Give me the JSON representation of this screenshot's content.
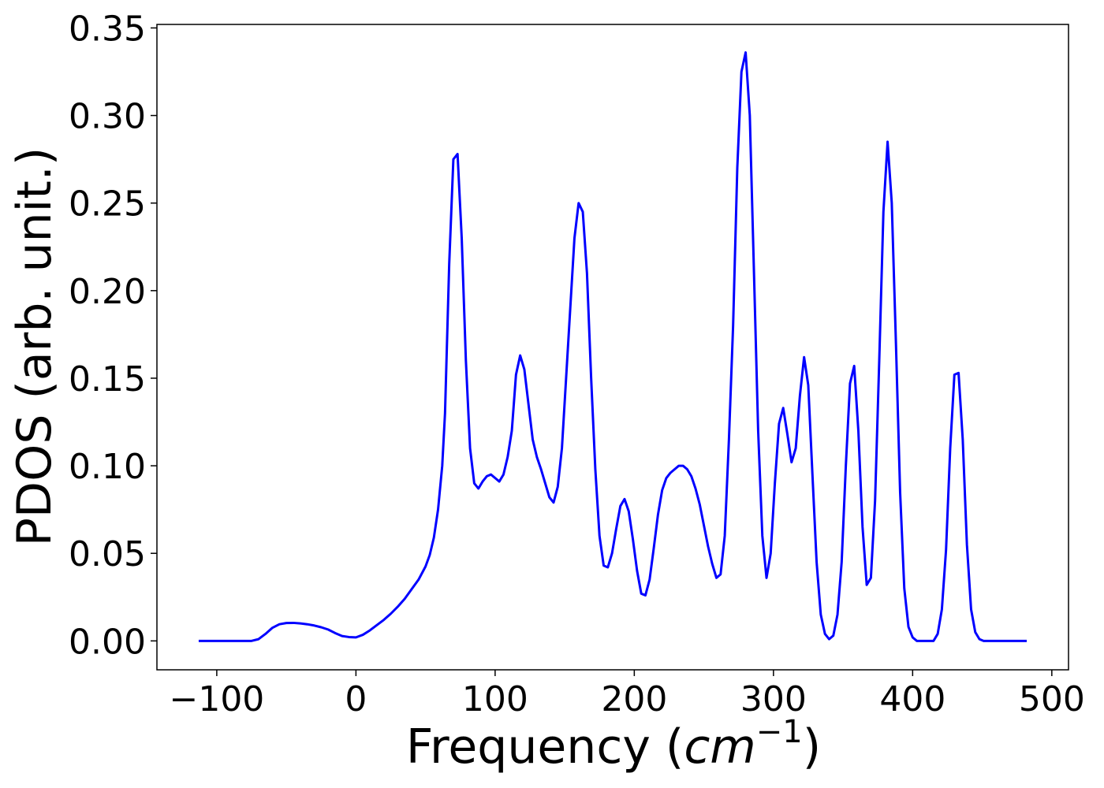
{
  "chart_data": {
    "type": "line",
    "title": "",
    "xlabel_main": "Frequency (",
    "xlabel_math": "cm",
    "xlabel_exp": "−1",
    "xlabel_close": ")",
    "ylabel": "PDOS (arb. unit.)",
    "xlim": [
      -143,
      512
    ],
    "ylim": [
      -0.0165,
      0.352
    ],
    "xticks": [
      -100,
      0,
      100,
      200,
      300,
      400,
      500
    ],
    "xtick_labels": [
      "−100",
      "0",
      "100",
      "200",
      "300",
      "400",
      "500"
    ],
    "yticks": [
      0.0,
      0.05,
      0.1,
      0.15,
      0.2,
      0.25,
      0.3,
      0.35
    ],
    "ytick_labels": [
      "0.00",
      "0.05",
      "0.10",
      "0.15",
      "0.20",
      "0.25",
      "0.30",
      "0.35"
    ],
    "grid": false,
    "series": [
      {
        "color": "#0000ff",
        "x": [
          -113,
          -100,
          -90,
          -80,
          -75,
          -70,
          -65,
          -60,
          -55,
          -50,
          -45,
          -40,
          -35,
          -30,
          -25,
          -20,
          -15,
          -10,
          -5,
          0,
          5,
          10,
          15,
          20,
          25,
          30,
          35,
          40,
          45,
          50,
          53,
          56,
          59,
          62,
          64,
          67,
          70,
          73,
          76,
          79,
          82,
          85,
          88,
          91,
          94,
          97,
          100,
          103,
          106,
          109,
          112,
          115,
          118,
          121,
          124,
          127,
          130,
          133,
          136,
          139,
          142,
          145,
          148,
          151,
          154,
          157,
          160,
          163,
          166,
          169,
          172,
          175,
          178,
          181,
          184,
          187,
          190,
          193,
          196,
          199,
          202,
          205,
          208,
          211,
          214,
          217,
          220,
          223,
          226,
          229,
          232,
          235,
          238,
          241,
          244,
          247,
          250,
          253,
          256,
          259,
          262,
          265,
          268,
          271,
          274,
          277,
          280,
          283,
          286,
          289,
          292,
          295,
          298,
          301,
          304,
          307,
          310,
          313,
          316,
          319,
          322,
          325,
          328,
          331,
          334,
          337,
          340,
          343,
          346,
          349,
          352,
          355,
          358,
          361,
          364,
          367,
          370,
          373,
          376,
          379,
          382,
          385,
          388,
          391,
          394,
          397,
          400,
          403,
          406,
          409,
          412,
          415,
          418,
          421,
          424,
          427,
          430,
          433,
          436,
          439,
          442,
          445,
          448,
          451,
          455,
          460,
          470,
          480,
          482
        ],
        "y": [
          0.0,
          0.0,
          0.0,
          0.0,
          0.0,
          0.001,
          0.004,
          0.0075,
          0.0095,
          0.0102,
          0.0103,
          0.01,
          0.0095,
          0.0088,
          0.0078,
          0.0065,
          0.0045,
          0.0028,
          0.0022,
          0.002,
          0.0035,
          0.006,
          0.009,
          0.012,
          0.0155,
          0.0195,
          0.024,
          0.0295,
          0.035,
          0.0425,
          0.049,
          0.059,
          0.075,
          0.1,
          0.13,
          0.215,
          0.275,
          0.278,
          0.23,
          0.16,
          0.11,
          0.09,
          0.087,
          0.091,
          0.094,
          0.095,
          0.093,
          0.091,
          0.095,
          0.105,
          0.12,
          0.152,
          0.163,
          0.155,
          0.135,
          0.115,
          0.105,
          0.098,
          0.09,
          0.082,
          0.079,
          0.088,
          0.11,
          0.15,
          0.19,
          0.23,
          0.25,
          0.245,
          0.21,
          0.15,
          0.098,
          0.06,
          0.043,
          0.042,
          0.05,
          0.064,
          0.077,
          0.081,
          0.074,
          0.058,
          0.04,
          0.027,
          0.026,
          0.035,
          0.053,
          0.072,
          0.086,
          0.093,
          0.096,
          0.098,
          0.1,
          0.1,
          0.098,
          0.094,
          0.087,
          0.078,
          0.066,
          0.054,
          0.044,
          0.036,
          0.038,
          0.06,
          0.115,
          0.18,
          0.27,
          0.325,
          0.336,
          0.3,
          0.21,
          0.12,
          0.06,
          0.036,
          0.05,
          0.09,
          0.124,
          0.133,
          0.118,
          0.102,
          0.11,
          0.14,
          0.162,
          0.146,
          0.095,
          0.045,
          0.015,
          0.004,
          0.001,
          0.003,
          0.015,
          0.045,
          0.1,
          0.147,
          0.157,
          0.12,
          0.065,
          0.032,
          0.036,
          0.08,
          0.16,
          0.245,
          0.285,
          0.25,
          0.17,
          0.085,
          0.03,
          0.008,
          0.002,
          0.0,
          0.0,
          0.0,
          0.0,
          0.0,
          0.004,
          0.018,
          0.052,
          0.11,
          0.152,
          0.153,
          0.115,
          0.055,
          0.018,
          0.005,
          0.001,
          0.0,
          0.0,
          0.0,
          0.0,
          0.0,
          0.0
        ]
      }
    ]
  }
}
